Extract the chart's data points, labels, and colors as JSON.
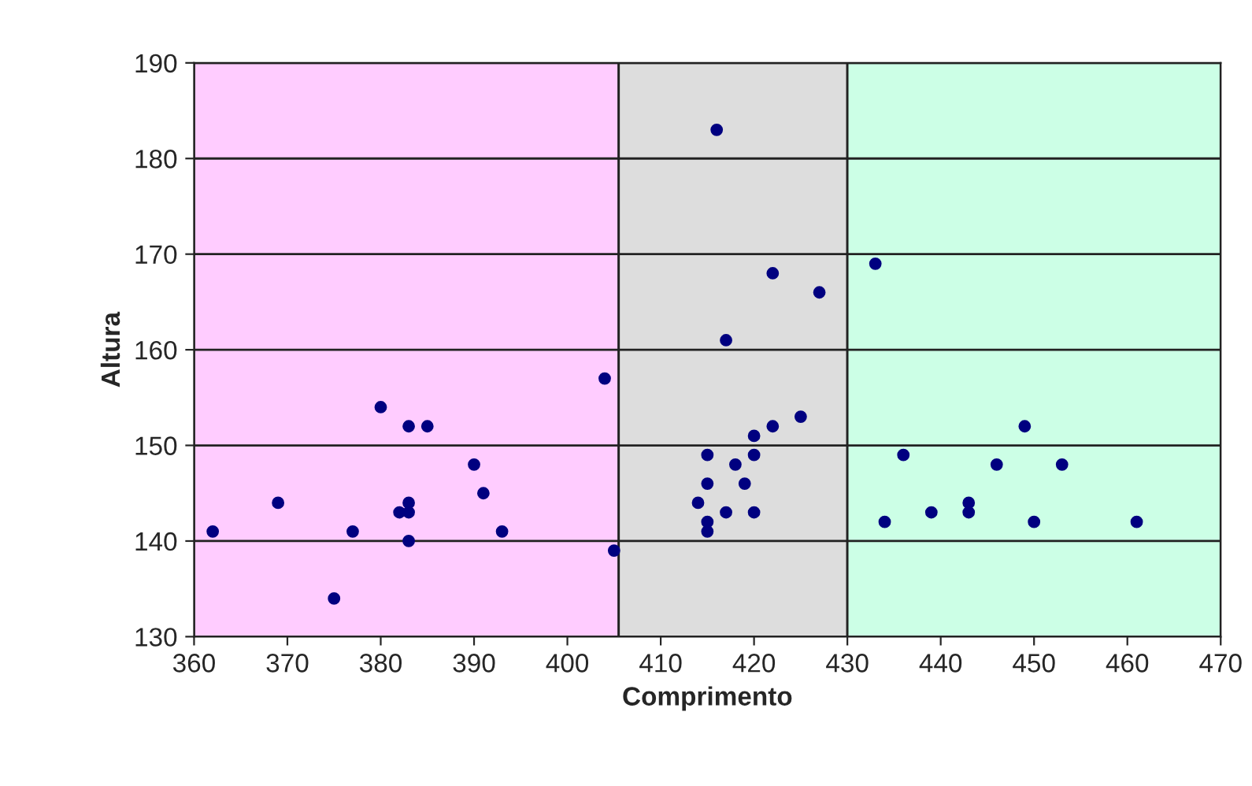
{
  "chart_data": {
    "type": "scatter",
    "xlabel": "Comprimento",
    "ylabel": "Altura",
    "xlim": [
      360,
      470
    ],
    "xticks": [
      360,
      370,
      380,
      390,
      400,
      410,
      420,
      430,
      440,
      450,
      460,
      470
    ],
    "ylim": [
      130,
      190
    ],
    "yticks": [
      130,
      140,
      150,
      160,
      170,
      180,
      190
    ],
    "grid": "y",
    "marker": "circle",
    "bands": [
      {
        "axis": "x",
        "from": 360,
        "to": 405.5,
        "color": "#ffccff"
      },
      {
        "axis": "x",
        "from": 405.5,
        "to": 430,
        "color": "#dddddd"
      },
      {
        "axis": "x",
        "from": 430,
        "to": 470,
        "color": "#ccffe6"
      }
    ],
    "series": [
      {
        "color": "#000080",
        "x": [
          362,
          369,
          375,
          377,
          380,
          382,
          383,
          383,
          383,
          383,
          385,
          390,
          391,
          393,
          404,
          405,
          416,
          417,
          422,
          427,
          425,
          422,
          420,
          415,
          420,
          418,
          419,
          415,
          414,
          417,
          420,
          415,
          415,
          433,
          434,
          436,
          439,
          443,
          443,
          446,
          449,
          450,
          453,
          461
        ],
        "values": [
          141,
          144,
          134,
          141,
          154,
          143,
          144,
          143,
          152,
          140,
          152,
          148,
          145,
          141,
          157,
          139,
          183,
          161,
          168,
          166,
          153,
          152,
          151,
          149,
          149,
          148,
          146,
          146,
          144,
          143,
          143,
          142,
          141,
          169,
          142,
          149,
          143,
          143,
          144,
          148,
          152,
          142,
          148,
          142
        ]
      }
    ]
  }
}
